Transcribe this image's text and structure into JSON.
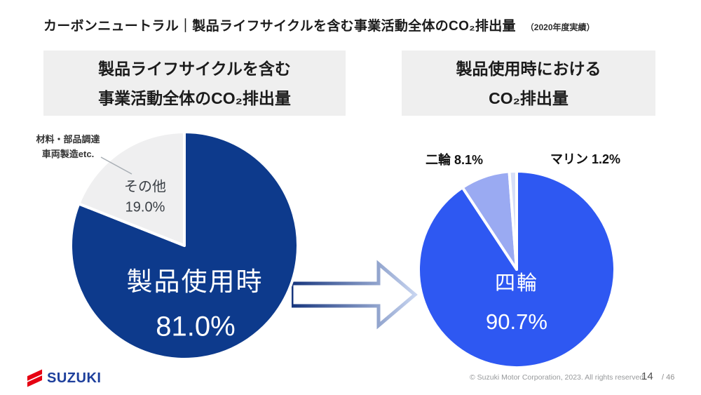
{
  "title": {
    "main": "カーボンニュートラル｜製品ライフサイクルを含む事業活動全体のCO₂排出量",
    "note": "（2020年度実績）"
  },
  "left_panel": {
    "header_line1": "製品ライフサイクルを含む",
    "header_line2": "事業活動全体のCO₂排出量",
    "annotation_line1": "材料・部品調達",
    "annotation_line2": "車両製造etc.",
    "other_label": "その他",
    "other_value": "19.0%",
    "main_label": "製品使用時",
    "main_value": "81.0%"
  },
  "right_panel": {
    "header_line1": "製品使用時における",
    "header_line2": "CO₂排出量",
    "motorcycle_label": "二輪 8.1%",
    "marine_label": "マリン 1.2%",
    "main_label": "四輪",
    "main_value": "90.7%"
  },
  "footer": {
    "logo_text": "SUZUKI",
    "copyright": "© Suzuki Motor Corporation, 2023. All rights reserved.",
    "page_number": "14",
    "page_total": "/ 46"
  },
  "colors": {
    "navy": "#0d3a8c",
    "gray_slice": "#efeff0",
    "royal_blue": "#2e58f2",
    "periwinkle": "#9aaaf2",
    "light_sliver": "#d7dff7",
    "header_bg": "#efefef",
    "suzuki_red": "#e60012",
    "suzuki_blue": "#1d3f9c"
  },
  "chart_data": [
    {
      "type": "pie",
      "title": "製品ライフサイクルを含む事業活動全体のCO₂排出量",
      "labels": [
        "製品使用時",
        "その他"
      ],
      "values": [
        81.0,
        19.0
      ],
      "colors": [
        "#0d3a8c",
        "#efeff0"
      ],
      "note": "その他＝材料・部品調達、車両製造etc.",
      "legend_position": "none",
      "start_angle_deg": 0,
      "direction": "clockwise"
    },
    {
      "type": "pie",
      "title": "製品使用時におけるCO₂排出量",
      "labels": [
        "四輪",
        "二輪",
        "マリン"
      ],
      "values": [
        90.7,
        8.1,
        1.2
      ],
      "colors": [
        "#2e58f2",
        "#9aaaf2",
        "#d7dff7"
      ],
      "legend_position": "none",
      "start_angle_deg": 0,
      "direction": "clockwise"
    }
  ]
}
